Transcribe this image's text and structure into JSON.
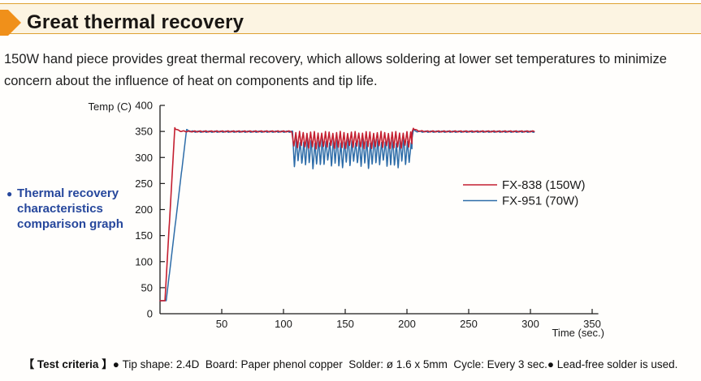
{
  "accent_color": "#f0901a",
  "band_border_color": "#dfa232",
  "band_bg_color": "#fcf4e2",
  "header": {
    "title": "Great thermal recovery"
  },
  "intro": {
    "text": "150W hand piece provides great thermal recovery, which allows soldering at lower set temperatures to minimize concern about the influence of heat on components and tip life."
  },
  "sidebar_note": {
    "bullet": "●",
    "lines": [
      "Thermal recovery",
      "characteristics",
      "comparison graph"
    ]
  },
  "chart_data": {
    "type": "line",
    "title": "Thermal recovery characteristics comparison graph",
    "xlabel": "Time (sec.)",
    "ylabel": "Temp (C)",
    "xlim": [
      0,
      350
    ],
    "ylim": [
      0,
      400
    ],
    "x_ticks": [
      50,
      100,
      150,
      200,
      250,
      300,
      350
    ],
    "y_ticks": [
      0,
      50,
      100,
      150,
      200,
      250,
      300,
      350,
      400
    ],
    "grid": false,
    "legend_position": "right-middle",
    "axis_color": "#1a1a1a",
    "set_temperature": 350,
    "series": [
      {
        "name": "FX-838 (150W)",
        "color": "#c41f30",
        "width": 1.6,
        "profile": {
          "start_temp": 25,
          "heat_start": 4,
          "reach_time": 12,
          "overshoot_temp": 357,
          "settle_temp": 350,
          "load_start": 107,
          "load_end": 204,
          "load_cycle_sec": 3,
          "load_peak": 348,
          "load_trough": 319,
          "peak_jitter": 2,
          "trough_jitter": 4,
          "recover_overshoot": 356,
          "ripple": 0.9,
          "phase": 0,
          "end_time": 303
        }
      },
      {
        "name": "FX-951 (70W)",
        "color": "#2d6ca8",
        "width": 1.5,
        "profile": {
          "start_temp": 25,
          "heat_start": 5,
          "reach_time": 21.5,
          "overshoot_temp": 353,
          "settle_temp": 349.5,
          "load_start": 107.5,
          "load_end": 204,
          "load_cycle_sec": 3,
          "load_peak": 335,
          "load_trough": 285,
          "peak_jitter": 5,
          "trough_jitter": 9,
          "recover_overshoot": 352,
          "ripple": 1.1,
          "phase": 2.3,
          "end_time": 303
        }
      }
    ]
  },
  "footer": {
    "bracket_open": "【 ",
    "label": "Test criteria",
    "bracket_close": " 】",
    "body": "● Tip shape: 2.4D  Board: Paper phenol copper  Solder: ø 1.6 x 5mm  Cycle: Every 3 sec.● Lead-free solder is used."
  }
}
